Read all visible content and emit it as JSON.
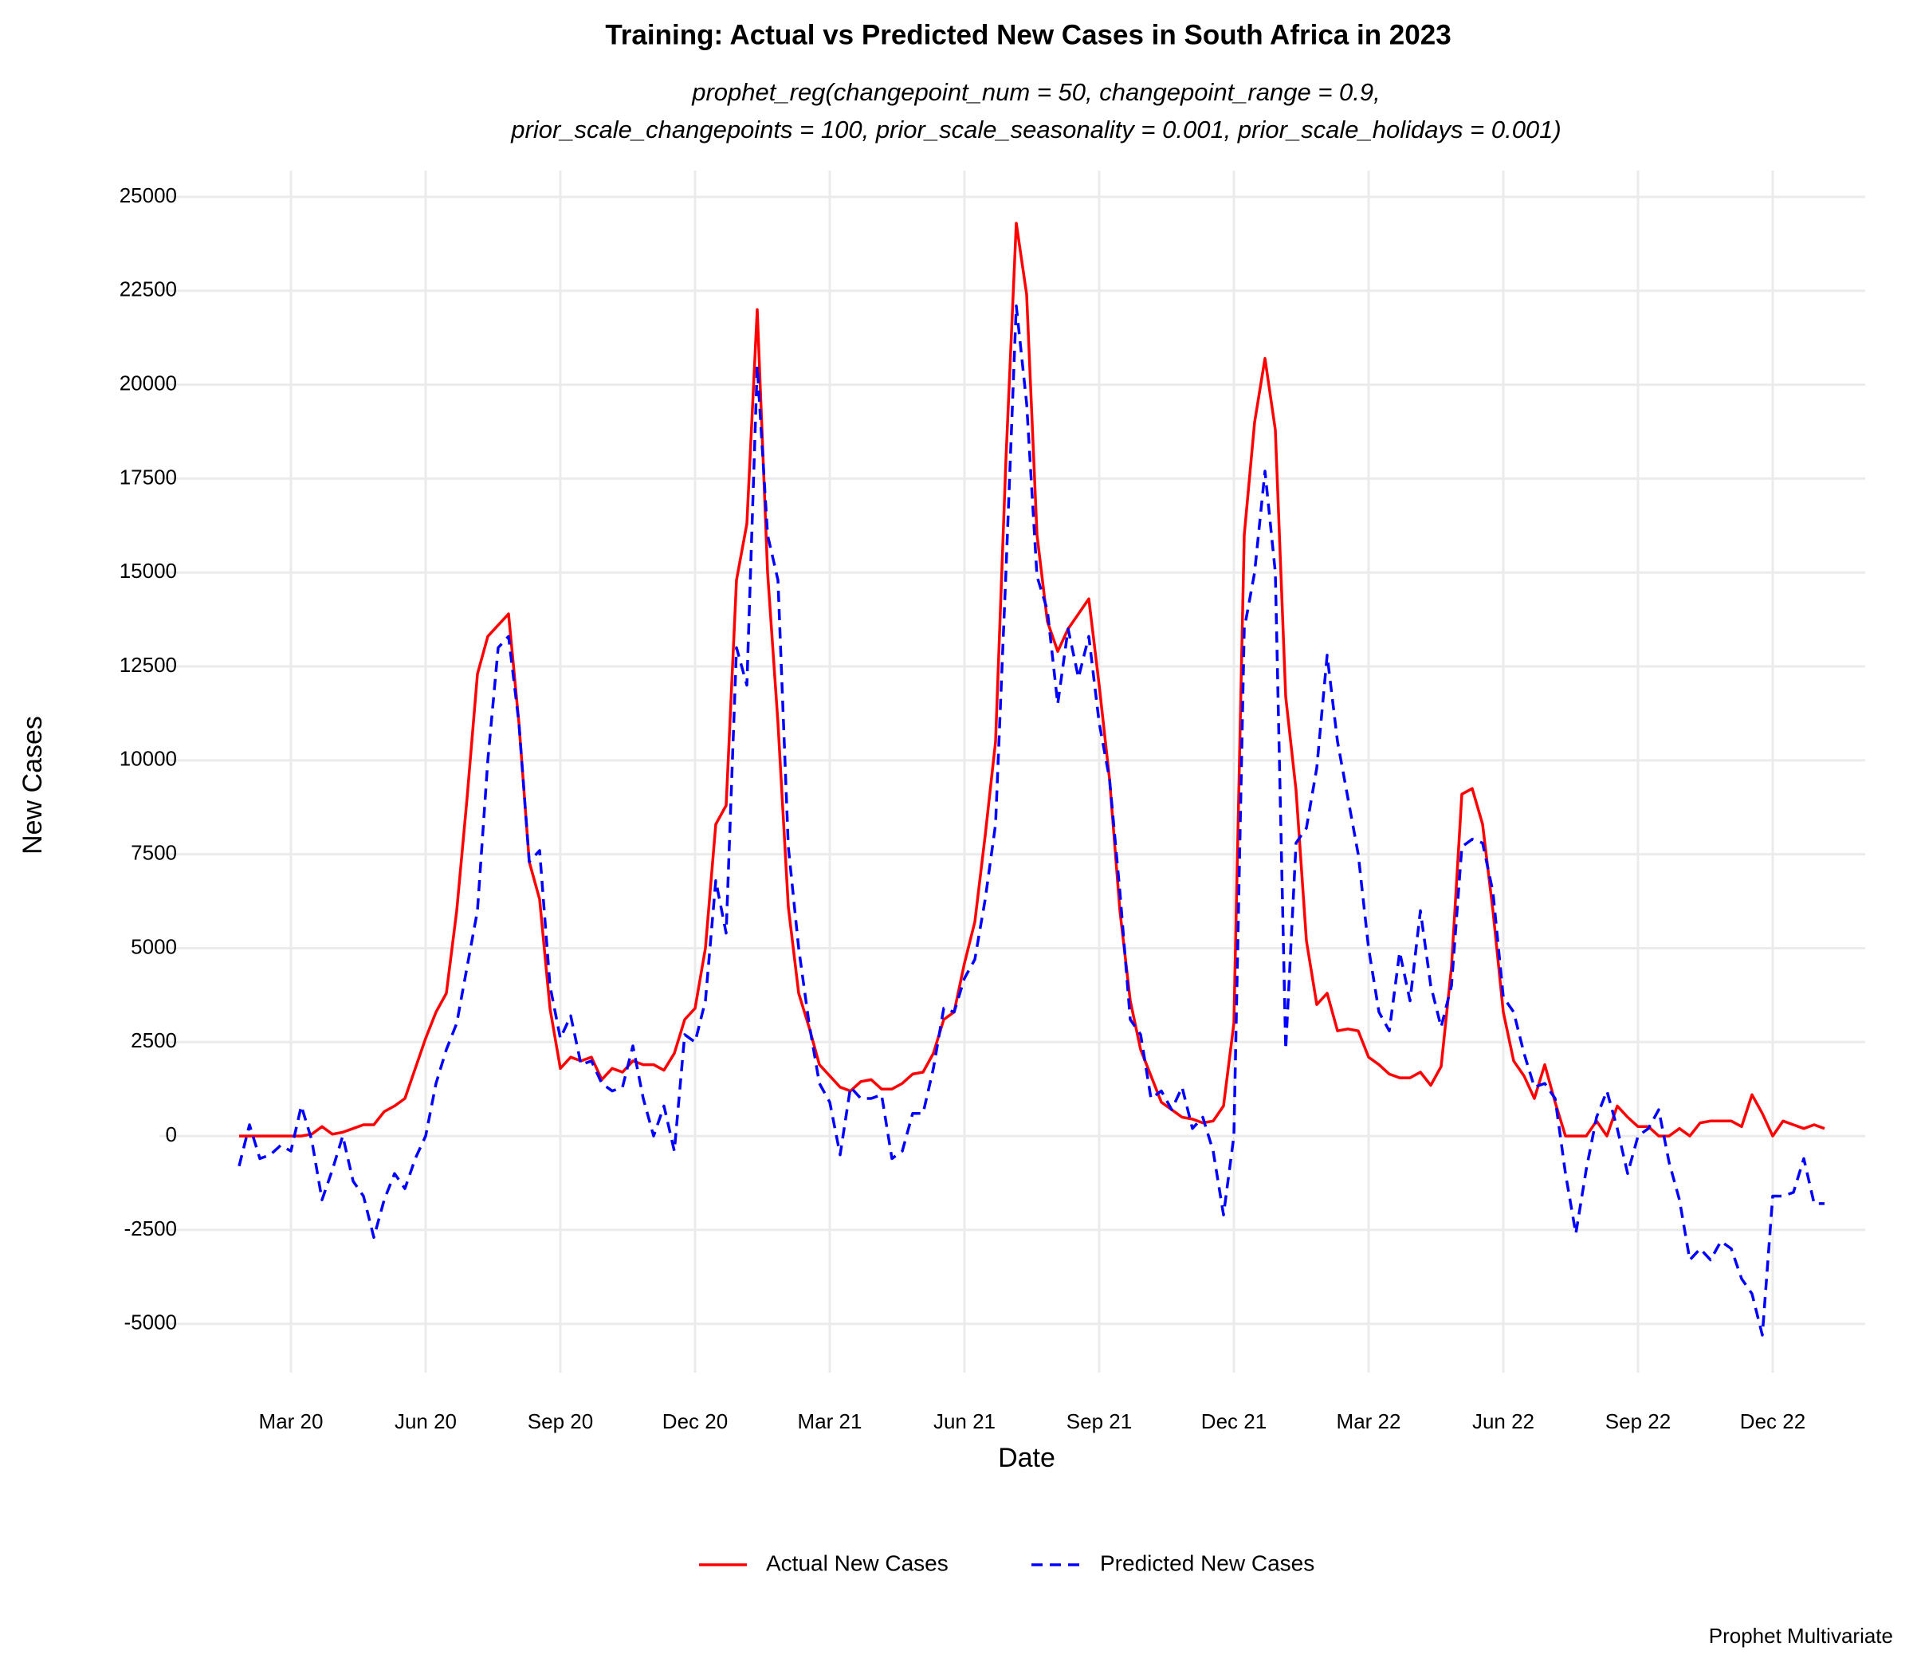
{
  "chart_data": {
    "type": "line",
    "title": "Training: Actual vs Predicted New Cases in South Africa in 2023",
    "subtitle": [
      "prophet_reg(changepoint_num = 50, changepoint_range = 0.9,",
      "prior_scale_changepoints = 100, prior_scale_seasonality = 0.001, prior_scale_holidays = 0.001)"
    ],
    "xlabel": "Date",
    "ylabel": "New Cases",
    "caption": "Prophet Multivariate",
    "categories": [
      null,
      null,
      null,
      null,
      null,
      "Mar 20",
      null,
      null,
      null,
      null,
      null,
      null,
      null,
      null,
      null,
      null,
      null,
      null,
      "Jun 20",
      null,
      null,
      null,
      null,
      null,
      null,
      null,
      null,
      null,
      null,
      null,
      null,
      "Sep 20",
      null,
      null,
      null,
      null,
      null,
      null,
      null,
      null,
      null,
      null,
      null,
      null,
      "Dec 20",
      null,
      null,
      null,
      null,
      null,
      null,
      null,
      null,
      null,
      null,
      null,
      null,
      "Mar 21",
      null,
      null,
      null,
      null,
      null,
      null,
      null,
      null,
      null,
      null,
      null,
      null,
      "Jun 21",
      null,
      null,
      null,
      null,
      null,
      null,
      null,
      null,
      null,
      null,
      null,
      null,
      "Sep 21",
      null,
      null,
      null,
      null,
      null,
      null,
      null,
      null,
      null,
      null,
      null,
      null,
      "Dec 21",
      null,
      null,
      null,
      null,
      null,
      null,
      null,
      null,
      null,
      null,
      null,
      null,
      "Mar 22",
      null,
      null,
      null,
      null,
      null,
      null,
      null,
      null,
      null,
      null,
      null,
      null,
      "Jun 22",
      null,
      null,
      null,
      null,
      null,
      null,
      null,
      null,
      null,
      null,
      null,
      null,
      "Sep 22",
      null,
      null,
      null,
      null,
      null,
      null,
      null,
      null,
      null,
      null,
      null,
      null,
      "Dec 22",
      null,
      null,
      null,
      null,
      null
    ],
    "series": [
      {
        "name": "Actual New Cases",
        "color": "#ff0000",
        "dashed": false,
        "values": [
          0,
          0,
          0,
          0,
          0,
          0,
          0,
          50,
          250,
          50,
          100,
          200,
          300,
          300,
          650,
          800,
          1000,
          1800,
          2600,
          3300,
          3800,
          6000,
          9000,
          12300,
          13300,
          13600,
          13900,
          11000,
          7300,
          6300,
          3400,
          1800,
          2100,
          2000,
          2100,
          1500,
          1800,
          1700,
          2000,
          1900,
          1900,
          1750,
          2200,
          3100,
          3400,
          5000,
          8300,
          8800,
          14800,
          16300,
          22000,
          15000,
          11000,
          6100,
          3800,
          2900,
          1900,
          1600,
          1300,
          1200,
          1450,
          1500,
          1250,
          1250,
          1400,
          1650,
          1700,
          2200,
          3100,
          3300,
          4600,
          5700,
          8000,
          10500,
          18000,
          24300,
          22400,
          16000,
          13700,
          12900,
          13500,
          13900,
          14300,
          12000,
          9500,
          6000,
          3600,
          2300,
          1600,
          900,
          700,
          500,
          450,
          350,
          400,
          800,
          3000,
          16000,
          19000,
          20700,
          18800,
          11700,
          9200,
          5200,
          3500,
          3800,
          2800,
          2850,
          2800,
          2100,
          1900,
          1650,
          1550,
          1550,
          1700,
          1350,
          1850,
          4500,
          9100,
          9250,
          8300,
          6000,
          3300,
          2000,
          1600,
          1000,
          1900,
          900,
          0,
          0,
          0,
          400,
          0,
          800,
          500,
          250,
          250,
          0,
          0,
          200,
          0,
          350,
          400,
          400,
          400,
          250,
          1100,
          600,
          0,
          400,
          300,
          200,
          300,
          200
        ]
      },
      {
        "name": "Predicted New Cases",
        "color": "#0000ff",
        "dashed": true,
        "values": [
          -800,
          300,
          -600,
          -500,
          -250,
          -400,
          800,
          -100,
          -1700,
          -900,
          0,
          -1200,
          -1600,
          -2700,
          -1700,
          -1000,
          -1400,
          -600,
          0,
          1400,
          2300,
          3000,
          4500,
          6000,
          10000,
          13000,
          13300,
          11000,
          7300,
          7600,
          4000,
          2600,
          3200,
          1900,
          2000,
          1400,
          1200,
          1300,
          2400,
          1000,
          0,
          800,
          -400,
          2700,
          2500,
          3600,
          6800,
          5400,
          13000,
          12000,
          20500,
          16000,
          14800,
          7700,
          5000,
          3000,
          1400,
          900,
          -500,
          1300,
          1000,
          1000,
          1100,
          -600,
          -400,
          600,
          600,
          1800,
          3400,
          3300,
          4200,
          4700,
          6300,
          8300,
          15000,
          22100,
          19500,
          14900,
          14000,
          11500,
          13500,
          12200,
          13300,
          11000,
          9500,
          6500,
          3100,
          2700,
          1000,
          1200,
          700,
          1300,
          200,
          500,
          -400,
          -2100,
          0,
          13500,
          15000,
          17700,
          15000,
          2300,
          7800,
          8200,
          9800,
          12800,
          10500,
          9000,
          7500,
          5000,
          3300,
          2800,
          4900,
          3600,
          6000,
          4000,
          2900,
          4000,
          7700,
          7900,
          7800,
          6500,
          3700,
          3300,
          2200,
          1300,
          1400,
          1000,
          -1000,
          -2600,
          -900,
          500,
          1200,
          200,
          -1000,
          0,
          200,
          700,
          -700,
          -1700,
          -3300,
          -3000,
          -3300,
          -2800,
          -3000,
          -3800,
          -4200,
          -5300,
          -1600,
          -1600,
          -1500,
          -600,
          -1800,
          -1800
        ]
      }
    ],
    "ylim": [
      -6300,
      25700
    ],
    "yticks": [
      -5000,
      -2500,
      0,
      2500,
      5000,
      7500,
      10000,
      12500,
      15000,
      17500,
      20000,
      22500,
      25000
    ],
    "grid": true,
    "legend": "bottom"
  }
}
